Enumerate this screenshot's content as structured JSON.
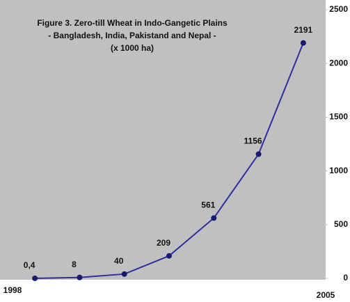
{
  "chart_data": {
    "type": "line",
    "title": [
      "Figure 3. Zero-till Wheat in Indo-Gangetic Plains",
      "- Bangladesh, India, Pakistand and Nepal -",
      "(x 1000 ha)"
    ],
    "categories": [
      "1998",
      null,
      null,
      null,
      null,
      null,
      "2005"
    ],
    "series": [
      {
        "name": "Zero-till Wheat",
        "color": "#2e2e9e",
        "values": [
          0.4,
          8,
          40,
          209,
          561,
          1156,
          2191
        ],
        "value_labels": [
          "0,4",
          "8",
          "40",
          "209",
          "561",
          "1156",
          "2191"
        ]
      }
    ],
    "ylim": [
      0,
      2500
    ],
    "yticks": [
      0,
      500,
      1000,
      1500,
      2000,
      2500
    ],
    "background": "#c0c0c0"
  }
}
